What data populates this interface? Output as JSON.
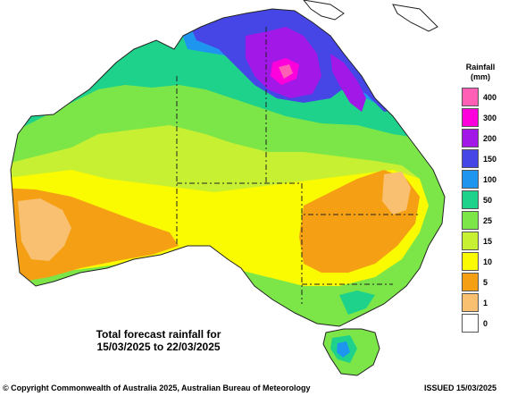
{
  "legend": {
    "title_line1": "Rainfall",
    "title_line2": "(mm)",
    "items": [
      {
        "label": "400",
        "color": "#ff5fb4"
      },
      {
        "label": "300",
        "color": "#ff00dc"
      },
      {
        "label": "200",
        "color": "#a218e6"
      },
      {
        "label": "150",
        "color": "#4646e6"
      },
      {
        "label": "100",
        "color": "#1e96f0"
      },
      {
        "label": "50",
        "color": "#1ed28c"
      },
      {
        "label": "25",
        "color": "#7ce648"
      },
      {
        "label": "15",
        "color": "#c8f032"
      },
      {
        "label": "10",
        "color": "#fafa00"
      },
      {
        "label": "5",
        "color": "#f5a014"
      },
      {
        "label": "1",
        "color": "#f8c070"
      },
      {
        "label": "0",
        "color": "#ffffff"
      }
    ]
  },
  "caption": {
    "line1": "Total forecast rainfall for",
    "line2": "15/03/2025 to 22/03/2025"
  },
  "footer": {
    "copyright": "© Copyright Commonwealth of Australia 2025, Australian Bureau of Meteorology",
    "issued": "ISSUED 15/03/2025"
  }
}
